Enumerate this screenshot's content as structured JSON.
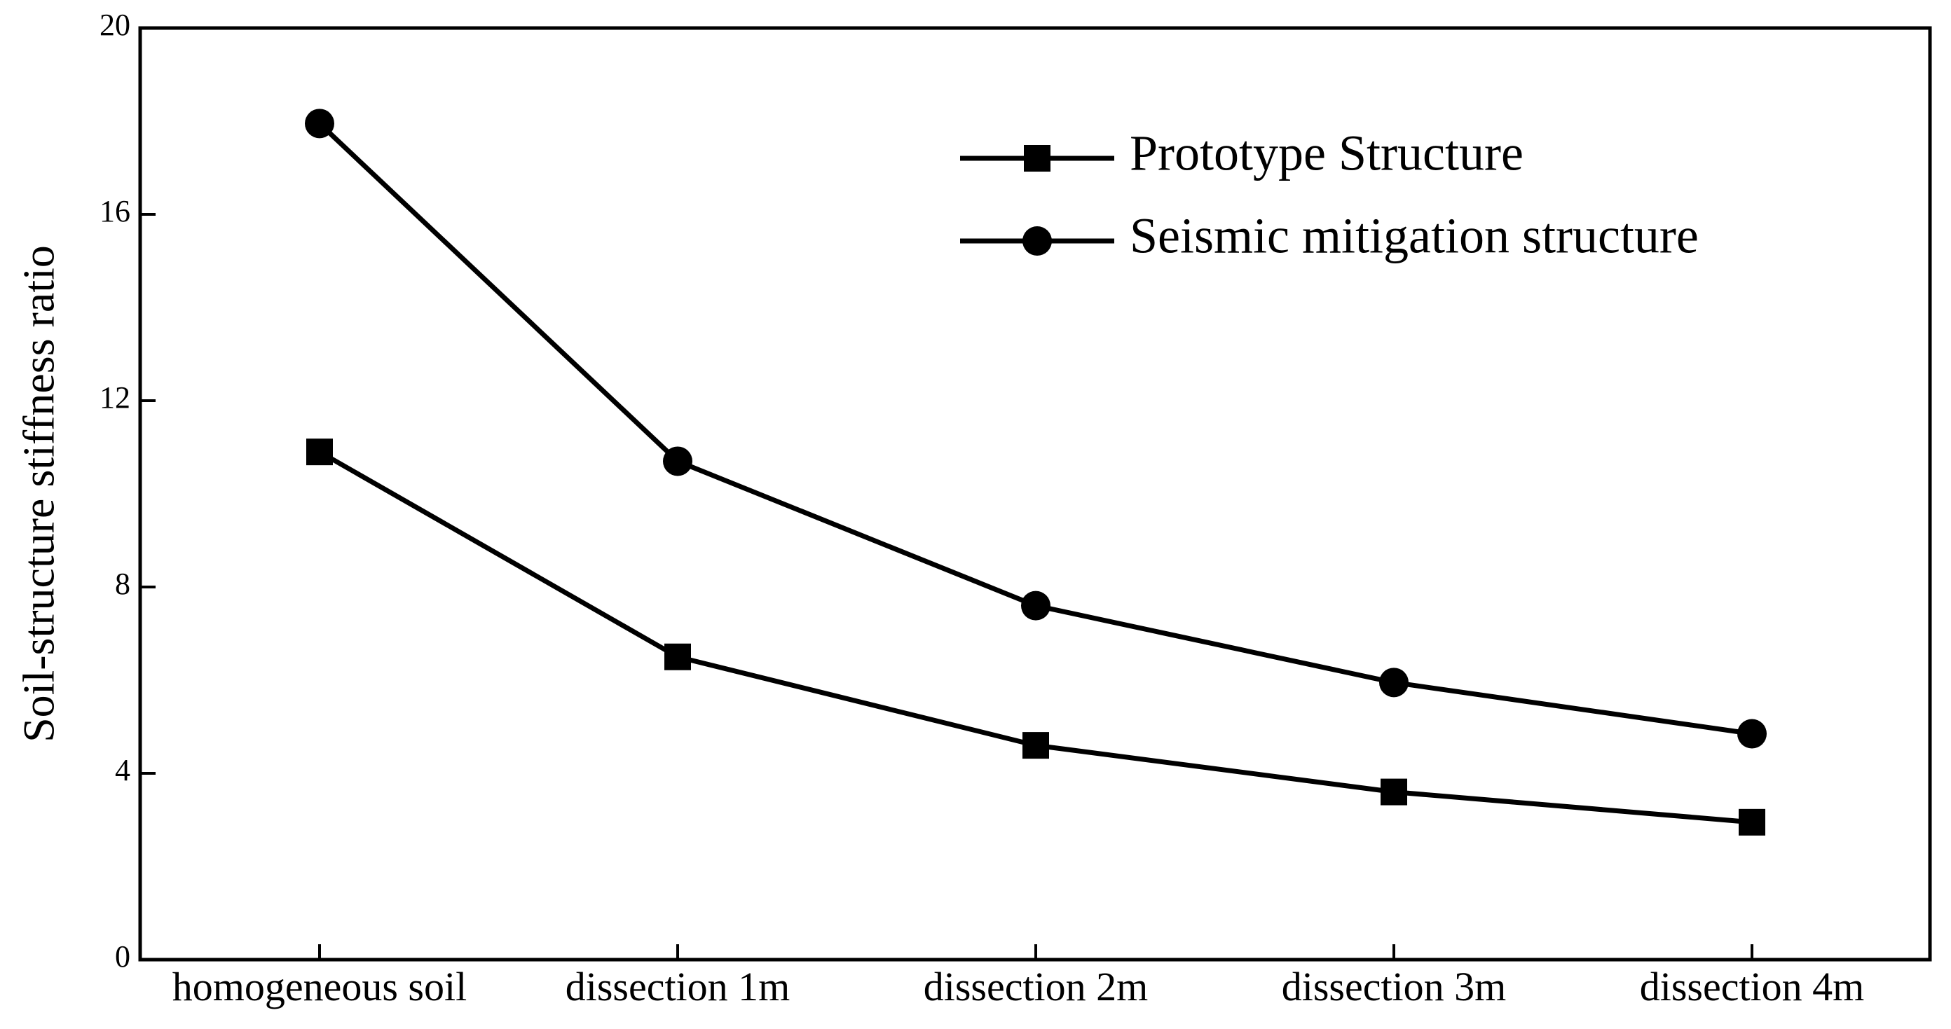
{
  "chart_data": {
    "type": "line",
    "categories": [
      "homogeneous soil",
      "dissection 1m",
      "dissection 2m",
      "dissection 3m",
      "dissection 4m"
    ],
    "series": [
      {
        "name": "Prototype Structure",
        "marker": "square",
        "values": [
          10.9,
          6.5,
          4.6,
          3.6,
          2.95
        ]
      },
      {
        "name": "Seismic mitigation structure",
        "marker": "circle",
        "values": [
          17.95,
          10.7,
          7.6,
          5.95,
          4.85
        ]
      }
    ],
    "y_ticks": [
      "0",
      "4",
      "8",
      "12",
      "16",
      "20"
    ],
    "ylabel": "Soil-structure stiffness ratio",
    "xlabel": "",
    "ylim": [
      0,
      20
    ],
    "grid": false,
    "legend_position": "top-right",
    "colors": {
      "line": "#000000",
      "background": "#ffffff"
    }
  }
}
